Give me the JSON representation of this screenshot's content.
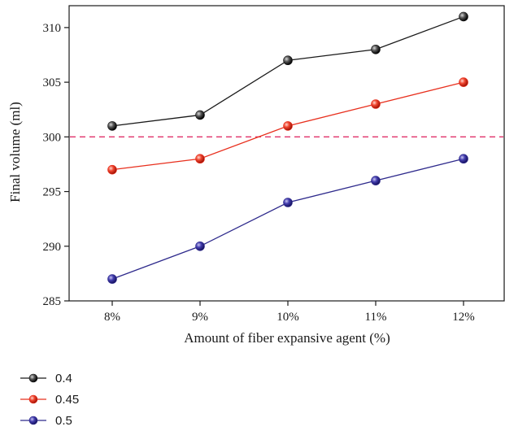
{
  "chart_data": {
    "type": "line",
    "title": "",
    "xlabel": "Amount of fiber expansive agent (%)",
    "ylabel": "Final volume (ml)",
    "categories": [
      "8%",
      "9%",
      "10%",
      "11%",
      "12%"
    ],
    "ylim": [
      285,
      312
    ],
    "yticks": [
      285,
      290,
      295,
      300,
      305,
      310
    ],
    "grid": false,
    "legend_position": "below-left",
    "reference_line": {
      "y": 300,
      "color": "#e0306a",
      "style": "dashed"
    },
    "series": [
      {
        "name": "0.4",
        "color": "#1a1a1a",
        "values": [
          301,
          302,
          307,
          308,
          311
        ]
      },
      {
        "name": "0.45",
        "color": "#e8301e",
        "values": [
          297,
          298,
          301,
          303,
          305
        ]
      },
      {
        "name": "0.5",
        "color": "#2e2a8c",
        "values": [
          287,
          290,
          294,
          296,
          298
        ]
      }
    ]
  }
}
